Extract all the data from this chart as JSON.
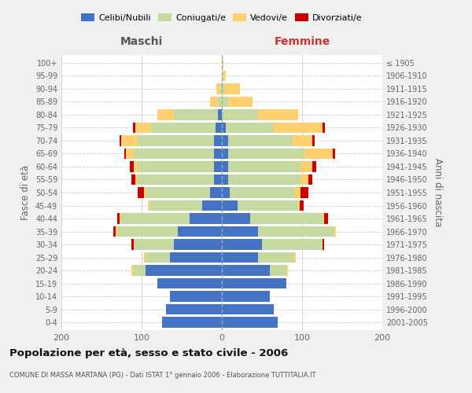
{
  "age_groups": [
    "0-4",
    "5-9",
    "10-14",
    "15-19",
    "20-24",
    "25-29",
    "30-34",
    "35-39",
    "40-44",
    "45-49",
    "50-54",
    "55-59",
    "60-64",
    "65-69",
    "70-74",
    "75-79",
    "80-84",
    "85-89",
    "90-94",
    "95-99",
    "100+"
  ],
  "birth_years": [
    "2001-2005",
    "1996-2000",
    "1991-1995",
    "1986-1990",
    "1981-1985",
    "1976-1980",
    "1971-1975",
    "1966-1970",
    "1961-1965",
    "1956-1960",
    "1951-1955",
    "1946-1950",
    "1941-1945",
    "1936-1940",
    "1931-1935",
    "1926-1930",
    "1921-1925",
    "1916-1920",
    "1911-1915",
    "1906-1910",
    "≤ 1905"
  ],
  "male_celibi": [
    75,
    70,
    65,
    80,
    95,
    65,
    60,
    55,
    40,
    25,
    15,
    10,
    10,
    10,
    10,
    8,
    5,
    0,
    0,
    0,
    0
  ],
  "male_coniugati": [
    0,
    0,
    0,
    0,
    15,
    30,
    50,
    75,
    85,
    65,
    80,
    95,
    95,
    100,
    95,
    80,
    55,
    5,
    2,
    0,
    0
  ],
  "male_vedovi": [
    0,
    0,
    0,
    0,
    3,
    2,
    0,
    2,
    2,
    2,
    2,
    3,
    5,
    10,
    20,
    20,
    20,
    10,
    5,
    0,
    0
  ],
  "male_divorziati": [
    0,
    0,
    0,
    0,
    0,
    0,
    3,
    3,
    3,
    0,
    8,
    5,
    5,
    2,
    2,
    3,
    0,
    0,
    0,
    0,
    0
  ],
  "female_celibi": [
    70,
    65,
    60,
    80,
    60,
    45,
    50,
    45,
    35,
    20,
    10,
    8,
    8,
    8,
    8,
    5,
    0,
    0,
    0,
    0,
    0
  ],
  "female_coniugati": [
    0,
    0,
    0,
    0,
    20,
    45,
    75,
    95,
    90,
    75,
    80,
    90,
    90,
    95,
    80,
    60,
    45,
    8,
    3,
    0,
    0
  ],
  "female_vedovi": [
    0,
    0,
    0,
    0,
    2,
    2,
    0,
    2,
    2,
    2,
    8,
    10,
    15,
    35,
    25,
    60,
    50,
    30,
    20,
    5,
    2
  ],
  "female_divorziati": [
    0,
    0,
    0,
    0,
    0,
    0,
    2,
    0,
    5,
    5,
    10,
    5,
    5,
    3,
    3,
    3,
    0,
    0,
    0,
    0,
    0
  ],
  "colors": {
    "celibi": "#4472C4",
    "coniugati": "#C5D9A0",
    "vedovi": "#FFD070",
    "divorziati": "#CC0000"
  },
  "title": "Popolazione per età, sesso e stato civile - 2006",
  "subtitle": "COMUNE DI MASSA MARTANA (PG) - Dati ISTAT 1° gennaio 2006 - Elaborazione TUTTITALIA.IT",
  "xlabel_left": "Maschi",
  "xlabel_right": "Femmine",
  "ylabel_left": "Fasce di età",
  "ylabel_right": "Anni di nascita",
  "xlim": 200,
  "bg_color": "#f0f0f0",
  "plot_bg_color": "#ffffff"
}
